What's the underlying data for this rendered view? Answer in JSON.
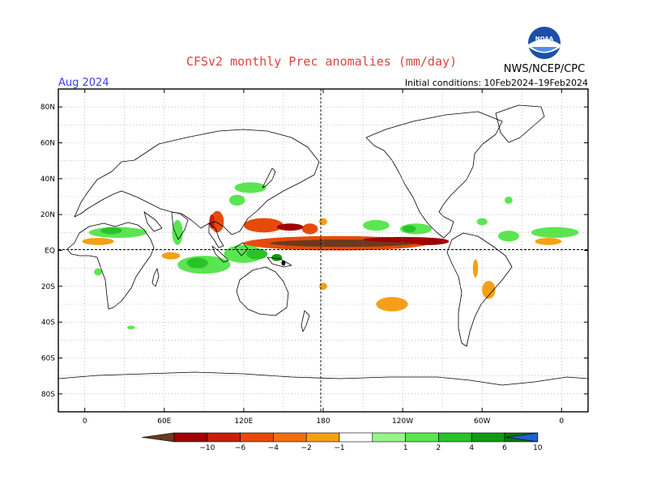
{
  "title": "CFSv2 monthly Prec anomalies (mm/day)",
  "valid_month": "Aug 2024",
  "initial_conditions": "Initial conditions: 10Feb2024–19Feb2024",
  "agency": "NWS/NCEP/CPC",
  "logo_text": "NOAA",
  "map": {
    "lon_ticks": [
      {
        "lon": 0,
        "label": "0"
      },
      {
        "lon": 60,
        "label": "60E"
      },
      {
        "lon": 120,
        "label": "120E"
      },
      {
        "lon": 180,
        "label": "180"
      },
      {
        "lon": 240,
        "label": "120W"
      },
      {
        "lon": 300,
        "label": "60W"
      },
      {
        "lon": 360,
        "label": "0"
      }
    ],
    "lat_ticks": [
      {
        "lat": 80,
        "label": "80N"
      },
      {
        "lat": 60,
        "label": "60N"
      },
      {
        "lat": 40,
        "label": "40N"
      },
      {
        "lat": 20,
        "label": "20N"
      },
      {
        "lat": 0,
        "label": "EQ"
      },
      {
        "lat": -20,
        "label": "20S"
      },
      {
        "lat": -40,
        "label": "40S"
      },
      {
        "lat": -60,
        "label": "60S"
      },
      {
        "lat": -80,
        "label": "80S"
      }
    ],
    "lon_range": [
      -20,
      380
    ],
    "lat_range": [
      -90,
      90
    ],
    "grid": true,
    "reference_line_lon": 180,
    "reference_line_lat": 0
  },
  "colorbar": {
    "ticks": [
      "−10",
      "−6",
      "−4",
      "−2",
      "−1",
      "1",
      "2",
      "4",
      "6",
      "10"
    ],
    "colors": [
      "#6b3a1e",
      "#a00000",
      "#c81e0a",
      "#e64a0a",
      "#f06e14",
      "#f5a014",
      "#ffffff",
      "#96f58c",
      "#5ae650",
      "#28c328",
      "#0f9b14",
      "#0a780a",
      "#2060d0"
    ]
  },
  "anomalies": [
    {
      "cls": "dry",
      "level": 2,
      "lon": 135,
      "lat": 14,
      "rlon": 15,
      "rlat": 4
    },
    {
      "cls": "dry",
      "level": 2,
      "lon": 170,
      "lat": 12,
      "rlon": 6,
      "rlat": 3
    },
    {
      "cls": "dry",
      "level": 4,
      "lon": 155,
      "lat": 13,
      "rlon": 10,
      "rlat": 2
    },
    {
      "cls": "dry",
      "level": 2,
      "lon": 190,
      "lat": 4,
      "rlon": 70,
      "rlat": 4
    },
    {
      "cls": "dry",
      "level": 5,
      "lon": 195,
      "lat": 4,
      "rlon": 55,
      "rlat": 2
    },
    {
      "cls": "dry",
      "level": 4,
      "lon": 240,
      "lat": 6,
      "rlon": 30,
      "rlat": 1.5
    },
    {
      "cls": "dry",
      "level": 4,
      "lon": 260,
      "lat": 5,
      "rlon": 15,
      "rlat": 2
    },
    {
      "cls": "dry",
      "level": 2,
      "lon": 100,
      "lat": 16,
      "rlon": 5,
      "rlat": 6
    },
    {
      "cls": "dry",
      "level": 3,
      "lon": 96,
      "lat": 16,
      "rlon": 2,
      "rlat": 4
    },
    {
      "cls": "dry",
      "level": 0,
      "lon": 65,
      "lat": -3,
      "rlon": 7,
      "rlat": 2
    },
    {
      "cls": "dry",
      "level": 0,
      "lon": 10,
      "lat": 5,
      "rlon": 12,
      "rlat": 2
    },
    {
      "cls": "dry",
      "level": 0,
      "lon": 350,
      "lat": 5,
      "rlon": 10,
      "rlat": 2
    },
    {
      "cls": "dry",
      "level": 0,
      "lon": 232,
      "lat": -30,
      "rlon": 12,
      "rlat": 4
    },
    {
      "cls": "dry",
      "level": 0,
      "lon": 305,
      "lat": -22,
      "rlon": 5,
      "rlat": 5
    },
    {
      "cls": "dry",
      "level": 0,
      "lon": 295,
      "lat": -10,
      "rlon": 2,
      "rlat": 5
    },
    {
      "cls": "dry",
      "level": 0,
      "lon": 180,
      "lat": -20,
      "rlon": 3,
      "rlat": 2
    },
    {
      "cls": "dry",
      "level": 0,
      "lon": 180,
      "lat": 16,
      "rlon": 3,
      "rlat": 2
    },
    {
      "cls": "wet",
      "level": 1,
      "lon": 25,
      "lat": 10,
      "rlon": 22,
      "rlat": 3
    },
    {
      "cls": "wet",
      "level": 1,
      "lon": 355,
      "lat": 10,
      "rlon": 18,
      "rlat": 3
    },
    {
      "cls": "wet",
      "level": 2,
      "lon": 20,
      "lat": 11,
      "rlon": 8,
      "rlat": 2
    },
    {
      "cls": "wet",
      "level": 1,
      "lon": 90,
      "lat": -8,
      "rlon": 20,
      "rlat": 5
    },
    {
      "cls": "wet",
      "level": 2,
      "lon": 85,
      "lat": -7,
      "rlon": 8,
      "rlat": 3
    },
    {
      "cls": "wet",
      "level": 1,
      "lon": 70,
      "lat": 10,
      "rlon": 4,
      "rlat": 7
    },
    {
      "cls": "wet",
      "level": 1,
      "lon": 120,
      "lat": -2,
      "rlon": 15,
      "rlat": 5
    },
    {
      "cls": "wet",
      "level": 2,
      "lon": 130,
      "lat": -2,
      "rlon": 8,
      "rlat": 3
    },
    {
      "cls": "wet",
      "level": 3,
      "lon": 145,
      "lat": -4,
      "rlon": 4,
      "rlat": 2
    },
    {
      "cls": "wet",
      "level": 6,
      "lon": 150,
      "lat": -7,
      "rlon": 1.5,
      "rlat": 1.5
    },
    {
      "cls": "wet",
      "level": 1,
      "lon": 125,
      "lat": 35,
      "rlon": 12,
      "rlat": 3
    },
    {
      "cls": "wet",
      "level": 1,
      "lon": 115,
      "lat": 28,
      "rlon": 6,
      "rlat": 3
    },
    {
      "cls": "wet",
      "level": 1,
      "lon": 220,
      "lat": 14,
      "rlon": 10,
      "rlat": 3
    },
    {
      "cls": "wet",
      "level": 1,
      "lon": 250,
      "lat": 12,
      "rlon": 12,
      "rlat": 3
    },
    {
      "cls": "wet",
      "level": 2,
      "lon": 245,
      "lat": 12,
      "rlon": 5,
      "rlat": 2
    },
    {
      "cls": "wet",
      "level": 1,
      "lon": 320,
      "lat": 8,
      "rlon": 8,
      "rlat": 3
    },
    {
      "cls": "wet",
      "level": 1,
      "lon": 320,
      "lat": 28,
      "rlon": 3,
      "rlat": 2
    },
    {
      "cls": "wet",
      "level": 1,
      "lon": 300,
      "lat": 16,
      "rlon": 4,
      "rlat": 2
    },
    {
      "cls": "wet",
      "level": 1,
      "lon": 35,
      "lat": -43,
      "rlon": 3,
      "rlat": 1
    },
    {
      "cls": "wet",
      "level": 1,
      "lon": 10,
      "lat": -12,
      "rlon": 3,
      "rlat": 2
    }
  ]
}
